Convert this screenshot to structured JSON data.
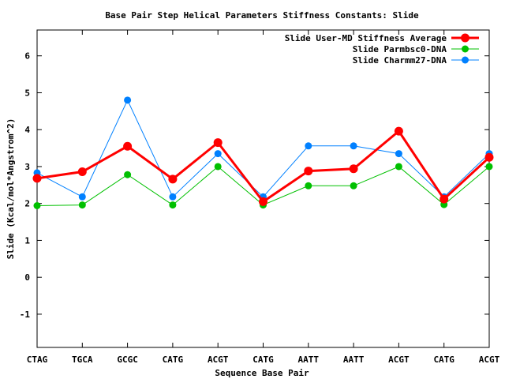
{
  "chart_data": {
    "type": "line",
    "title": "Base Pair Step Helical Parameters Stiffness Constants: Slide",
    "xlabel": "Sequence Base Pair",
    "ylabel": "Slide (Kcal/mol*Angstrom^2)",
    "categories": [
      "CTAG",
      "TGCA",
      "GCGC",
      "CATG",
      "ACGT",
      "CATG",
      "AATT",
      "AATT",
      "ACGT",
      "CATG",
      "ACGT"
    ],
    "ylim": [
      -1.9,
      6.7
    ],
    "yticks": [
      "-1",
      "0",
      "1",
      "2",
      "3",
      "4",
      "5",
      "6"
    ],
    "grid": false,
    "legend_position": "top-right",
    "series": [
      {
        "name": "Slide User-MD Stiffness Average",
        "color": "#ff0000",
        "values": [
          2.68,
          2.86,
          3.55,
          2.66,
          3.65,
          2.05,
          2.88,
          2.94,
          3.96,
          2.12,
          3.25
        ]
      },
      {
        "name": "Slide Parmbsc0-DNA",
        "color": "#00c000",
        "values": [
          1.94,
          1.96,
          2.78,
          1.96,
          3.0,
          1.96,
          2.48,
          2.48,
          3.0,
          1.97,
          3.0
        ]
      },
      {
        "name": "Slide Charmm27-DNA",
        "color": "#0080ff",
        "values": [
          2.83,
          2.18,
          4.8,
          2.18,
          3.35,
          2.18,
          3.56,
          3.56,
          3.35,
          2.18,
          3.35
        ]
      }
    ]
  }
}
